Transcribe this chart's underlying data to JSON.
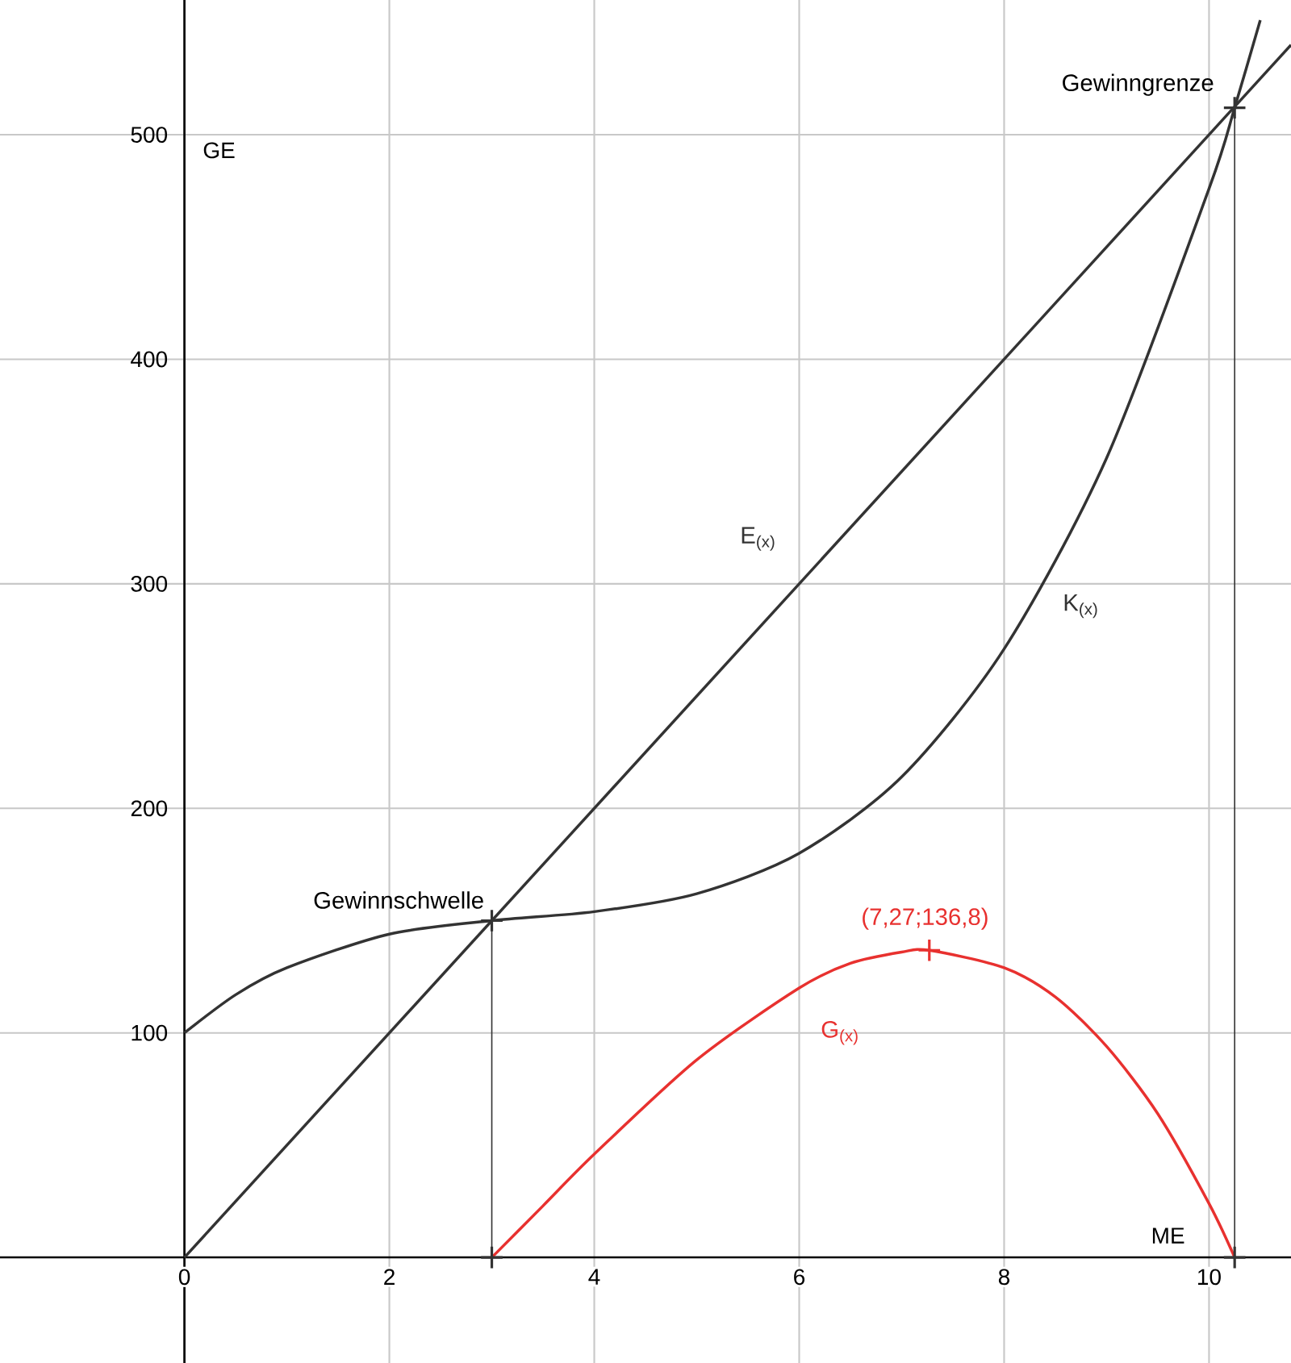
{
  "chart_data": {
    "type": "line",
    "xlabel": "ME",
    "ylabel": "GE",
    "xlim": [
      -1.8,
      10.8
    ],
    "ylim": [
      -47,
      560
    ],
    "xticks": [
      0,
      2,
      4,
      6,
      8,
      10
    ],
    "yticks": [
      100,
      200,
      300,
      400,
      500
    ],
    "grid": true,
    "marker": "none",
    "line_style": "solid",
    "series": [
      {
        "name": "E$_{(x)}$",
        "color": "#333333",
        "x": [
          0,
          10.8
        ],
        "values": [
          0,
          540
        ]
      },
      {
        "name": "K$_{(x)}$",
        "color": "#333333",
        "x": [
          0,
          0.5,
          1,
          2,
          3,
          4,
          5,
          6,
          7,
          8,
          9,
          10,
          10.25,
          10.5
        ],
        "values": [
          100,
          117,
          129,
          144,
          150,
          154,
          162,
          180,
          214,
          271,
          356,
          476,
          512,
          551
        ]
      },
      {
        "name": "G$_{(x)}$",
        "color": "#e8312f",
        "x": [
          3,
          3.5,
          4,
          5,
          6,
          6.5,
          7,
          7.27,
          8,
          8.5,
          9,
          9.5,
          10,
          10.25
        ],
        "values": [
          0,
          23,
          46,
          88,
          120,
          131,
          136,
          136.8,
          129,
          116,
          94,
          64,
          24,
          0
        ]
      },
      {
        "type": "line",
        "color": "#333333",
        "marker": "cross",
        "x": [
          3,
          3
        ],
        "values": [
          0,
          150
        ]
      },
      {
        "type": "line",
        "color": "#333333",
        "marker": "cross",
        "x": [
          10.25,
          10.25
        ],
        "values": [
          0,
          512
        ]
      },
      {
        "type": "scatter",
        "color": "#e8312f",
        "marker": "cross",
        "x": [
          7.27
        ],
        "values": [
          136.8
        ]
      }
    ],
    "annotations": [
      {
        "text": "Gewinnschwelle",
        "x": 3,
        "y": 150
      },
      {
        "text": "Gewinngrenze",
        "x": 10.25,
        "y": 512
      },
      {
        "text": "(7,27;136,8)",
        "x": 7.27,
        "y": 136.8
      }
    ]
  }
}
